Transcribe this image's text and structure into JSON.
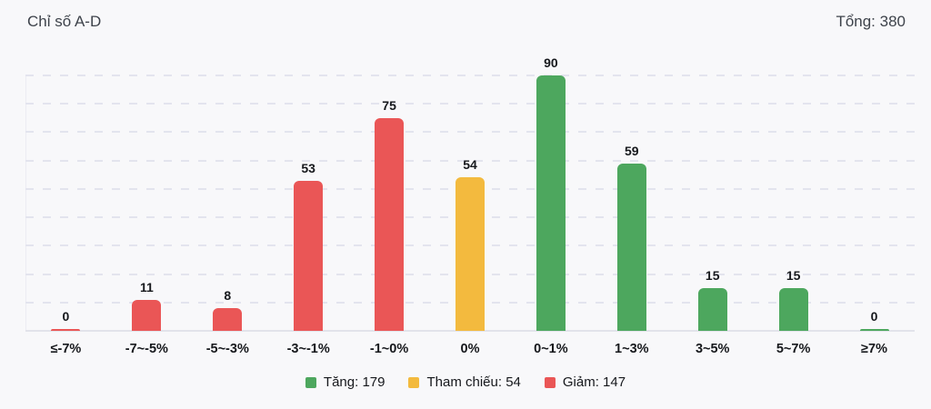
{
  "header": {
    "title": "Chỉ số A-D",
    "total_label": "Tổng: 380"
  },
  "chart_data": {
    "type": "bar",
    "title": "Chỉ số A-D",
    "categories": [
      "≤-7%",
      "-7~-5%",
      "-5~-3%",
      "-3~-1%",
      "-1~0%",
      "0%",
      "0~1%",
      "1~3%",
      "3~5%",
      "5~7%",
      "≥7%"
    ],
    "values": [
      0,
      11,
      8,
      53,
      75,
      54,
      90,
      59,
      15,
      15,
      0
    ],
    "bar_groups": [
      "down",
      "down",
      "down",
      "down",
      "down",
      "ref",
      "up",
      "up",
      "up",
      "up",
      "up"
    ],
    "group_colors": {
      "up": "#4da75e",
      "ref": "#f3ba3e",
      "down": "#ea5656"
    },
    "total": 380,
    "xlabel": "",
    "ylabel": "",
    "ylim": [
      0,
      90
    ],
    "gridline_step": 10,
    "grid": "horizontal-dashed",
    "legend_position": "bottom-center"
  },
  "legend": {
    "items": [
      {
        "id": "up",
        "label": "Tăng: 179",
        "color": "#4da75e"
      },
      {
        "id": "ref",
        "label": "Tham chiếu: 54",
        "color": "#f3ba3e"
      },
      {
        "id": "down",
        "label": "Giảm: 147",
        "color": "#ea5656"
      }
    ]
  }
}
